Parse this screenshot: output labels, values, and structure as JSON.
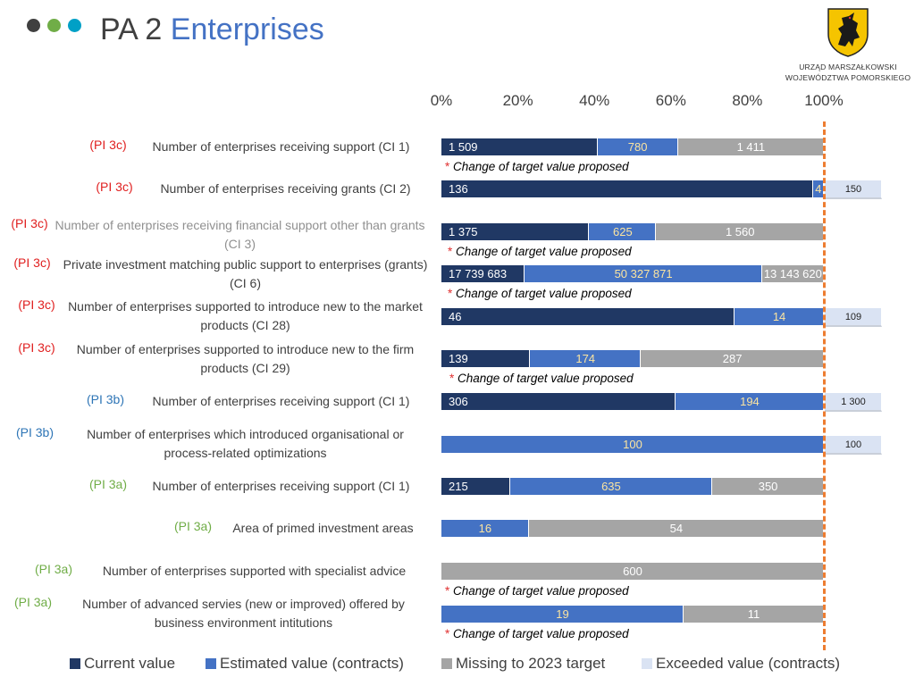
{
  "header": {
    "title_prefix": "PA 2",
    "title_accent": "Enterprises"
  },
  "logo": {
    "line1": "URZĄD MARSZAŁKOWSKI",
    "line2": "WOJEWÓDZTWA POMORSKIEGO"
  },
  "colors": {
    "current": "#203864",
    "estimated": "#4472c4",
    "missing": "#a5a5a5",
    "exceeded": "#dae3f3",
    "pi3c": "#e02020",
    "pi3b": "#2e75b6",
    "pi3a": "#70ad47",
    "reference": "#ed7d31"
  },
  "note_text": "Change of target value proposed",
  "chart_data": {
    "type": "bar",
    "orientation": "horizontal",
    "stacked": "percent",
    "x_ticks": [
      "0%",
      "20%",
      "40%",
      "60%",
      "80%",
      "100%"
    ],
    "xlim": [
      0,
      100
    ],
    "reference_line": 100,
    "legend": [
      "Current value",
      "Estimated value (contracts)",
      "Missing to 2023 target",
      "Exceeded value (contracts)"
    ],
    "rows": [
      {
        "tag": "(PI 3c)",
        "group": "pi3c",
        "label": "Number of enterprises receiving support (CI 1)",
        "segments": [
          {
            "s": "current",
            "v": 1509,
            "label": "1 509"
          },
          {
            "s": "estimated",
            "v": 780,
            "label": "780"
          },
          {
            "s": "missing",
            "v": 1411,
            "label": "1 411"
          }
        ],
        "note_after": true
      },
      {
        "tag": "(PI 3c)",
        "group": "pi3c",
        "label": "Number of enterprises receiving grants (CI 2)",
        "segments": [
          {
            "s": "current",
            "v": 136,
            "label": "136"
          },
          {
            "s": "estimated",
            "v": 4,
            "label": "4"
          }
        ],
        "exceeded": {
          "v": 150,
          "label": "150"
        }
      },
      {
        "tag": "(PI 3c)",
        "group": "pi3c",
        "label": "Number of enterprises receiving financial support other than grants (CI 3)",
        "label_grey": true,
        "segments": [
          {
            "s": "current",
            "v": 1375,
            "label": "1 375"
          },
          {
            "s": "estimated",
            "v": 625,
            "label": "625"
          },
          {
            "s": "missing",
            "v": 1560,
            "label": "1 560"
          }
        ],
        "note_after": true
      },
      {
        "tag": "(PI 3c)",
        "group": "pi3c",
        "label": "Private investment matching public support to enterprises (grants)  (CI 6)",
        "segments": [
          {
            "s": "current",
            "v": 17739683,
            "label": "17 739 683"
          },
          {
            "s": "estimated",
            "v": 50327871,
            "label": "50 327 871"
          },
          {
            "s": "missing",
            "v": 13143620,
            "label": "13 143 620"
          }
        ],
        "note_after": true
      },
      {
        "tag": "(PI 3c)",
        "group": "pi3c",
        "label": "Number of enterprises supported to introduce new to the market products  (CI 28)",
        "segments": [
          {
            "s": "current",
            "v": 46,
            "label": "46"
          },
          {
            "s": "estimated",
            "v": 14,
            "label": "14"
          }
        ],
        "exceeded": {
          "v": 109,
          "label": "109"
        }
      },
      {
        "tag": "(PI 3c)",
        "group": "pi3c",
        "label": "Number of enterprises supported to introduce new to the firm products  (CI 29)",
        "segments": [
          {
            "s": "current",
            "v": 139,
            "label": "139"
          },
          {
            "s": "estimated",
            "v": 174,
            "label": "174"
          },
          {
            "s": "missing",
            "v": 287,
            "label": "287"
          }
        ],
        "note_after": true
      },
      {
        "tag": "(PI 3b)",
        "group": "pi3b",
        "label": "Number of enterprises receiving support (CI 1)",
        "segments": [
          {
            "s": "current",
            "v": 306,
            "label": "306"
          },
          {
            "s": "estimated",
            "v": 194,
            "label": "194"
          }
        ],
        "exceeded": {
          "v": 1300,
          "label": "1 300"
        }
      },
      {
        "tag": "(PI 3b)",
        "group": "pi3b",
        "label": "Number of enterprises which introduced organisational or process-related optimizations",
        "segments": [
          {
            "s": "estimated",
            "v": 100,
            "label": "100"
          }
        ],
        "exceeded": {
          "v": 100,
          "label": "100"
        }
      },
      {
        "tag": "(PI 3a)",
        "group": "pi3a",
        "label": "Number of enterprises receiving support (CI 1)",
        "segments": [
          {
            "s": "current",
            "v": 215,
            "label": "215"
          },
          {
            "s": "estimated",
            "v": 635,
            "label": "635"
          },
          {
            "s": "missing",
            "v": 350,
            "label": "350"
          }
        ]
      },
      {
        "tag": "(PI 3a)",
        "group": "pi3a",
        "label": "Area of primed investment areas",
        "segments": [
          {
            "s": "estimated",
            "v": 16,
            "label": "16"
          },
          {
            "s": "missing",
            "v": 54,
            "label": "54"
          }
        ]
      },
      {
        "tag": "(PI 3a)",
        "group": "pi3a",
        "label": "Number of enterprises supported with specialist advice",
        "segments": [
          {
            "s": "missing",
            "v": 600,
            "label": "600"
          }
        ],
        "note_after": true
      },
      {
        "tag": "(PI 3a)",
        "group": "pi3a",
        "label": "Number of advanced servies (new or improved) offered by business environment intitutions",
        "segments": [
          {
            "s": "estimated",
            "v": 19,
            "label": "19"
          },
          {
            "s": "missing",
            "v": 11,
            "label": "11"
          }
        ],
        "note_after": true
      }
    ]
  }
}
